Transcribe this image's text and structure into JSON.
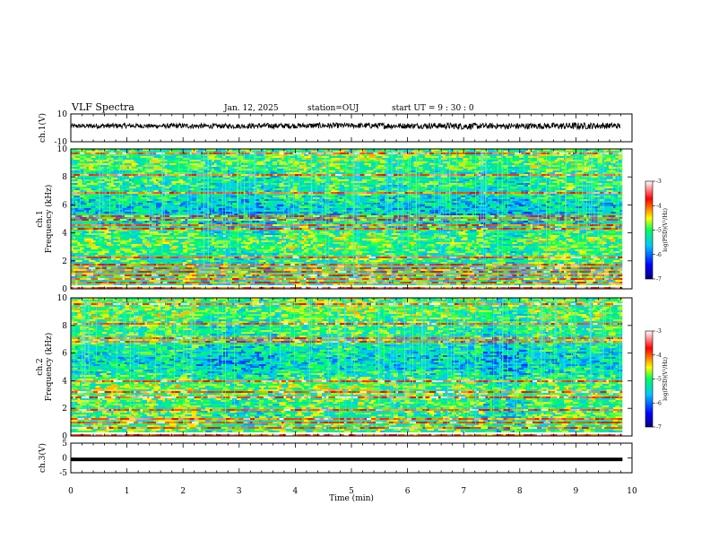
{
  "header": {
    "title": "VLF Spectra",
    "date": "Jan. 12, 2025",
    "station": "station=OUJ",
    "start": "start UT =  9 : 30 : 0"
  },
  "chart_data": [
    {
      "type": "line",
      "name": "ch1-waveform",
      "ylabel": "ch.1(V)",
      "ylim": [
        -10,
        10
      ],
      "yticks": [
        "10",
        "-10"
      ],
      "xlim": [
        0,
        10
      ],
      "x": [
        0,
        0.5,
        1,
        1.5,
        2,
        2.5,
        3,
        3.5,
        4,
        4.5,
        5,
        5.5,
        6,
        6.5,
        7,
        7.5,
        8,
        8.5,
        9,
        9.5,
        9.8
      ],
      "values": [
        1.2,
        1.4,
        1.5,
        1.3,
        1.4,
        1.2,
        1.3,
        1.4,
        1.5,
        1.6,
        1.6,
        1.5,
        1.4,
        1.5,
        1.2,
        1.3,
        1.2,
        1.4,
        1.3,
        1.5,
        1.4
      ],
      "envelope": [
        1.6,
        1.8,
        1.7,
        1.6,
        1.9,
        1.7,
        1.8,
        2.0,
        1.9,
        2.1,
        1.8,
        2.2,
        2.0,
        2.1,
        2.4,
        2.0,
        2.3,
        2.2,
        2.6,
        2.2,
        2.0
      ]
    },
    {
      "type": "heatmap",
      "name": "ch1-spectrogram",
      "ylabel": "ch.1\nFrequency (kHz)",
      "ylim": [
        0,
        10
      ],
      "yticks": [
        "0",
        "2",
        "4",
        "6",
        "8",
        "10"
      ],
      "xlim": [
        0,
        10
      ],
      "data_end_min": 9.83,
      "colorbar": {
        "label": "log(PSD)(V²/Hz)",
        "range": [
          -7,
          -3
        ],
        "ticks": [
          "-3",
          "-4",
          "-5",
          "-6",
          "-7"
        ]
      },
      "segments": [
        {
          "from": 0,
          "to": 2.2,
          "level": 0.38
        },
        {
          "from": 2.2,
          "to": 3.7,
          "level": 0.32
        },
        {
          "from": 3.7,
          "to": 5.5,
          "level": 0.42
        },
        {
          "from": 5.5,
          "to": 7.3,
          "level": 0.36
        },
        {
          "from": 7.3,
          "to": 8.1,
          "level": 0.3
        },
        {
          "from": 8.1,
          "to": 9.83,
          "level": 0.4
        }
      ],
      "lines_khz": [
        0.2,
        0.5,
        0.8,
        1.0,
        1.3,
        1.5,
        1.8,
        2.3,
        3.4,
        4.3,
        4.6,
        5.0,
        5.3,
        6.9,
        8.2,
        9.7
      ]
    },
    {
      "type": "heatmap",
      "name": "ch2-spectrogram",
      "ylabel": "ch.2\nFrequency (kHz)",
      "ylim": [
        0,
        10
      ],
      "yticks": [
        "0",
        "2",
        "4",
        "6",
        "8",
        "10"
      ],
      "xlim": [
        0,
        10
      ],
      "data_end_min": 9.83,
      "colorbar": {
        "label": "log(PSD)(V²/Hz)",
        "range": [
          -7,
          -3
        ],
        "ticks": [
          "-3",
          "-4",
          "-5",
          "-6",
          "-7"
        ]
      },
      "segments": [
        {
          "from": 0,
          "to": 2.2,
          "level": 0.45
        },
        {
          "from": 2.2,
          "to": 3.7,
          "level": 0.34
        },
        {
          "from": 3.7,
          "to": 5.5,
          "level": 0.44
        },
        {
          "from": 5.5,
          "to": 7.3,
          "level": 0.4
        },
        {
          "from": 7.3,
          "to": 8.1,
          "level": 0.3
        },
        {
          "from": 8.1,
          "to": 9.83,
          "level": 0.42
        }
      ],
      "lines_khz": [
        0.3,
        0.6,
        1.0,
        1.3,
        2.0,
        2.8,
        3.3,
        4.0,
        5.0,
        6.3,
        6.9,
        7.2,
        8.2,
        9.6
      ]
    },
    {
      "type": "line",
      "name": "ch3-waveform",
      "ylabel": "ch.3(V)",
      "ylim": [
        -5,
        5
      ],
      "yticks": [
        "5",
        "0",
        "-5"
      ],
      "xlim": [
        0,
        10
      ],
      "x": [
        0,
        9.83
      ],
      "values": [
        -0.5,
        -0.5
      ],
      "xlabel": "Time (min)",
      "xticks": [
        "0",
        "1",
        "2",
        "3",
        "4",
        "5",
        "6",
        "7",
        "8",
        "9",
        "10"
      ]
    }
  ]
}
